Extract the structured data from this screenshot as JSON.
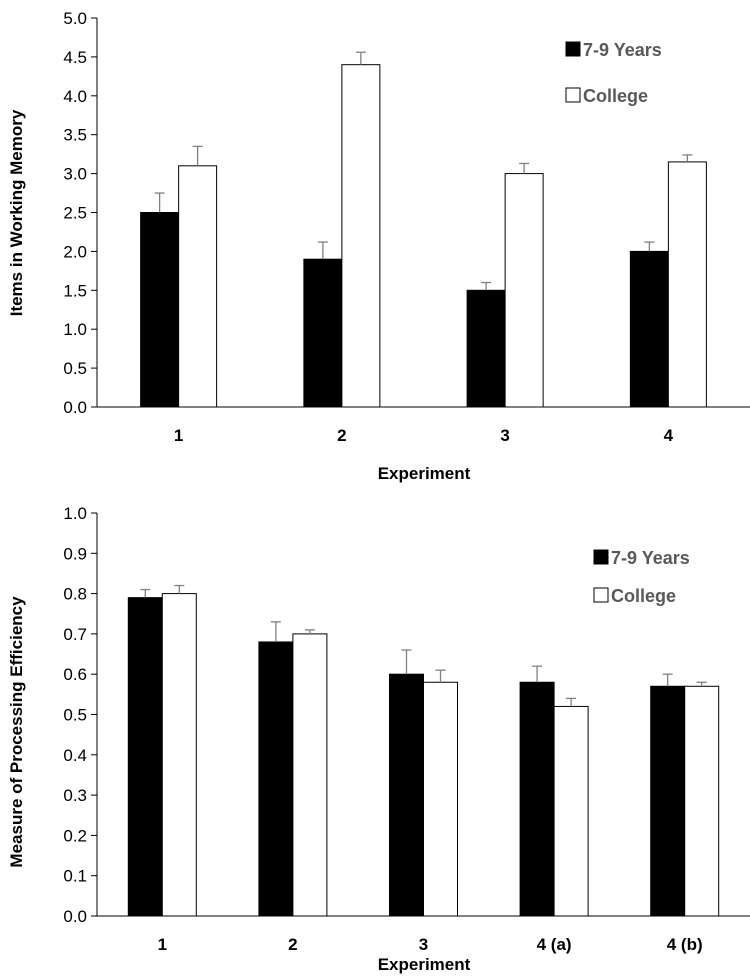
{
  "colors": {
    "series_1": "#000000",
    "series_2": "#ffffff",
    "outline": "#000000",
    "error_bar": "#808080",
    "axis": "#000000",
    "legend_text": "#595959"
  },
  "chart_data": [
    {
      "type": "bar",
      "title": "",
      "xlabel": "Experiment",
      "ylabel": "Items in Working Memory",
      "ylim": [
        0,
        5
      ],
      "yticks": [
        "0.0",
        "0.5",
        "1.0",
        "1.5",
        "2.0",
        "2.5",
        "3.0",
        "3.5",
        "4.0",
        "4.5",
        "5.0"
      ],
      "categories": [
        "1",
        "2",
        "3",
        "4"
      ],
      "grid": false,
      "legend_position": "top-right",
      "series": [
        {
          "name": "7-9 Years",
          "values": [
            2.5,
            1.9,
            1.5,
            2.0
          ],
          "errors": [
            0.25,
            0.22,
            0.1,
            0.12
          ]
        },
        {
          "name": "College",
          "values": [
            3.1,
            4.4,
            3.0,
            3.15
          ],
          "errors": [
            0.25,
            0.16,
            0.13,
            0.09
          ]
        }
      ]
    },
    {
      "type": "bar",
      "title": "",
      "xlabel": "Experiment",
      "ylabel": "Measure of Processing Efficiency",
      "ylim": [
        0,
        1
      ],
      "yticks": [
        "0.0",
        "0.1",
        "0.2",
        "0.3",
        "0.4",
        "0.5",
        "0.6",
        "0.7",
        "0.8",
        "0.9",
        "1.0"
      ],
      "categories": [
        "1",
        "2",
        "3",
        "4 (a)",
        "4 (b)"
      ],
      "grid": false,
      "legend_position": "top-right",
      "series": [
        {
          "name": "7-9 Years",
          "values": [
            0.79,
            0.68,
            0.6,
            0.58,
            0.57
          ],
          "errors": [
            0.02,
            0.05,
            0.06,
            0.04,
            0.03
          ]
        },
        {
          "name": "College",
          "values": [
            0.8,
            0.7,
            0.58,
            0.52,
            0.57
          ],
          "errors": [
            0.02,
            0.01,
            0.03,
            0.02,
            0.01
          ]
        }
      ]
    }
  ]
}
